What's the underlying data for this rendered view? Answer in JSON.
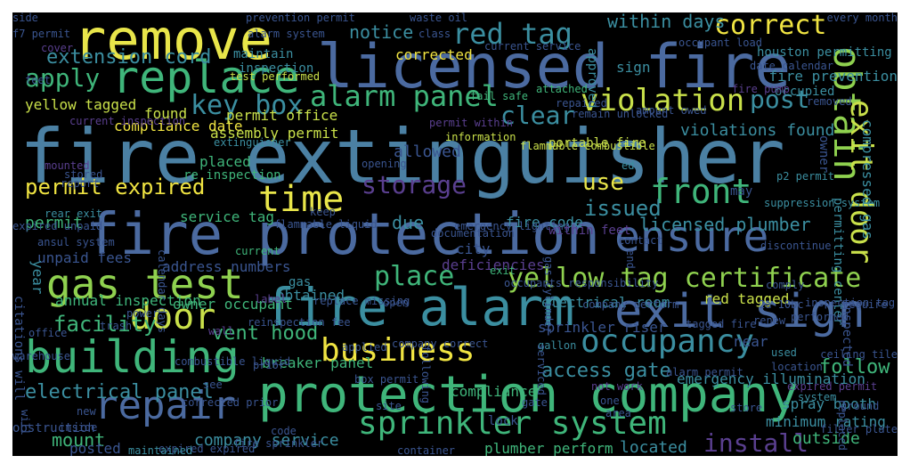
{
  "background": "#000000",
  "palette": {
    "teal": "#3b8ea0",
    "slate": "#4b6aa0",
    "navy": "#3a5590",
    "green": "#3fb57a",
    "lime": "#8fd14f",
    "yellow": "#f0e442",
    "purple": "#5a3f8f"
  },
  "words": [
    {
      "text": "fire extinguisher",
      "color": "#4b80a3"
    },
    {
      "text": "licensed fire",
      "color": "#4b6aa0"
    },
    {
      "text": "fire protection",
      "color": "#4b6aa0"
    },
    {
      "text": "protection company",
      "color": "#3fb57a"
    },
    {
      "text": "fire alarm",
      "color": "#3b8ea0"
    },
    {
      "text": "remove",
      "color": "#e8e54a"
    },
    {
      "text": "exit sign",
      "color": "#4b6aa0"
    },
    {
      "text": "ensure",
      "color": "#4b6aa0"
    },
    {
      "text": "building",
      "color": "#3fb57a"
    },
    {
      "text": "replace",
      "color": "#3fb57a"
    },
    {
      "text": "gas test",
      "color": "#8fd14f"
    },
    {
      "text": "repair",
      "color": "#4b6aa0"
    },
    {
      "text": "obtain",
      "color": "#8fd14f"
    },
    {
      "text": "sprinkler system",
      "color": "#3fb57a"
    },
    {
      "text": "exit door",
      "color": "#c9e04a"
    },
    {
      "text": "front",
      "color": "#3fb57a"
    },
    {
      "text": "door",
      "color": "#c9e04a"
    },
    {
      "text": "time",
      "color": "#e8e54a"
    },
    {
      "text": "business",
      "color": "#f0e442"
    },
    {
      "text": "occupancy",
      "color": "#3b8ea0"
    },
    {
      "text": "violation",
      "color": "#c9e04a"
    },
    {
      "text": "yellow tag certificate",
      "color": "#8fd14f"
    },
    {
      "text": "red tag",
      "color": "#3b8ea0"
    },
    {
      "text": "correct",
      "color": "#f0e442"
    },
    {
      "text": "alarm panel",
      "color": "#3fb57a"
    },
    {
      "text": "key box",
      "color": "#3b8ea0"
    },
    {
      "text": "post",
      "color": "#3b8ea0"
    },
    {
      "text": "clear",
      "color": "#3b8ea0"
    },
    {
      "text": "apply",
      "color": "#3fb57a"
    },
    {
      "text": "place",
      "color": "#3fb57a"
    },
    {
      "text": "permit expired",
      "color": "#f0e442"
    },
    {
      "text": "storage",
      "color": "#5a3f8f"
    },
    {
      "text": "install",
      "color": "#5a3f8f"
    },
    {
      "text": "use",
      "color": "#e8e54a"
    },
    {
      "text": "issued",
      "color": "#3b8ea0"
    },
    {
      "text": "facility",
      "color": "#3fb57a"
    },
    {
      "text": "electrical panel",
      "color": "#3b8ea0"
    },
    {
      "text": "follow",
      "color": "#3fb57a"
    },
    {
      "text": "access gate",
      "color": "#3b8ea0"
    },
    {
      "text": "licensed plumber",
      "color": "#3b8ea0"
    },
    {
      "text": "extension cord",
      "color": "#3b8ea0"
    },
    {
      "text": "notice",
      "color": "#3b8ea0"
    },
    {
      "text": "within days",
      "color": "#3b8ea0"
    },
    {
      "text": "vent hood",
      "color": "#3fb57a"
    },
    {
      "text": "company service",
      "color": "#3b8ea0"
    },
    {
      "text": "mount",
      "color": "#3fb57a"
    },
    {
      "text": "permit",
      "color": "#3fb57a"
    },
    {
      "text": "due",
      "color": "#3b8ea0"
    },
    {
      "text": "fire code",
      "color": "#3b8ea0"
    },
    {
      "text": "emergency illumination",
      "color": "#3b8ea0"
    },
    {
      "text": "violations found",
      "color": "#3b8ea0"
    },
    {
      "text": "fire prevention",
      "color": "#3b8ea0"
    },
    {
      "text": "houston permitting",
      "color": "#3b8ea0"
    },
    {
      "text": "occupied",
      "color": "#3b8ea0"
    },
    {
      "text": "permitting center",
      "color": "#3b8ea0"
    },
    {
      "text": "compressed gas",
      "color": "#3b8ea0"
    },
    {
      "text": "compliance date",
      "color": "#f0e442"
    },
    {
      "text": "yellow tagged",
      "color": "#c9e04a"
    },
    {
      "text": "found",
      "color": "#c9e04a"
    },
    {
      "text": "assembly permit",
      "color": "#c9e04a"
    },
    {
      "text": "permit office",
      "color": "#c9e04a"
    },
    {
      "text": "service tag",
      "color": "#3fb57a"
    },
    {
      "text": "breaker panel",
      "color": "#3fb57a"
    },
    {
      "text": "compliance",
      "color": "#3fb57a"
    },
    {
      "text": "plumber perform",
      "color": "#3fb57a"
    },
    {
      "text": "located",
      "color": "#3b8ea0"
    },
    {
      "text": "outside",
      "color": "#3fb57a"
    },
    {
      "text": "minimum rating",
      "color": "#3b8ea0"
    },
    {
      "text": "spray booth",
      "color": "#3b8ea0"
    },
    {
      "text": "annual inspection",
      "color": "#3fb57a"
    },
    {
      "text": "address numbers",
      "color": "#3a5590"
    },
    {
      "text": "deficiencies",
      "color": "#5a3f8f"
    },
    {
      "text": "owner occupant",
      "color": "#3fb57a"
    },
    {
      "text": "electrical room",
      "color": "#3b8ea0"
    },
    {
      "text": "red tagged",
      "color": "#c9e04a"
    },
    {
      "text": "maintain",
      "color": "#3b8ea0"
    },
    {
      "text": "inspection",
      "color": "#3b8ea0"
    },
    {
      "text": "corrected",
      "color": "#f0e442"
    },
    {
      "text": "approved",
      "color": "#3b8ea0"
    },
    {
      "text": "sign",
      "color": "#3b8ea0"
    },
    {
      "text": "current service",
      "color": "#3a5590"
    },
    {
      "text": "waste oil",
      "color": "#3a5590"
    },
    {
      "text": "class",
      "color": "#3a5590"
    },
    {
      "text": "prevention permit",
      "color": "#3a5590"
    },
    {
      "text": "alarm system",
      "color": "#3a5590"
    },
    {
      "text": "f7 permit",
      "color": "#3a5590"
    },
    {
      "text": "cover",
      "color": "#5a3f8f"
    },
    {
      "text": "test performed",
      "color": "#c9e04a"
    },
    {
      "text": "feet",
      "color": "#3a5590"
    },
    {
      "text": "occupant load",
      "color": "#3a5590"
    },
    {
      "text": "date calendar",
      "color": "#3a5590"
    },
    {
      "text": "every month",
      "color": "#3a5590"
    },
    {
      "text": "fail safe",
      "color": "#3fb57a"
    },
    {
      "text": "attached",
      "color": "#3fb57a"
    },
    {
      "text": "repaired",
      "color": "#3a5590"
    },
    {
      "text": "remain unlocked",
      "color": "#3a5590"
    },
    {
      "text": "amount owed",
      "color": "#3a5590"
    },
    {
      "text": "removed",
      "color": "#3a5590"
    },
    {
      "text": "fire pump",
      "color": "#5a3f8f"
    },
    {
      "text": "portable fire",
      "color": "#c9e04a"
    },
    {
      "text": "flammable combustible",
      "color": "#c9e04a"
    },
    {
      "text": "information",
      "color": "#c9e04a"
    },
    {
      "text": "permit within",
      "color": "#5a3f8f"
    },
    {
      "text": "extinguisher",
      "color": "#3b8ea0"
    },
    {
      "text": "placed",
      "color": "#3fb57a"
    },
    {
      "text": "re inspection",
      "color": "#3fb57a"
    },
    {
      "text": "mounted",
      "color": "#5a3f8f"
    },
    {
      "text": "stored",
      "color": "#3a5590"
    },
    {
      "text": "report",
      "color": "#3a5590"
    },
    {
      "text": "opening",
      "color": "#3a5590"
    },
    {
      "text": "allowed",
      "color": "#3a5590"
    },
    {
      "text": "ed",
      "color": "#3b8ea0"
    },
    {
      "text": "may",
      "color": "#3a5590"
    },
    {
      "text": "suppression system",
      "color": "#3b8ea0"
    },
    {
      "text": "p2 permit",
      "color": "#3b8ea0"
    },
    {
      "text": "owner",
      "color": "#3a5590"
    },
    {
      "text": "rear exit",
      "color": "#3b8ea0"
    },
    {
      "text": "expired unpaid",
      "color": "#3a5590"
    },
    {
      "text": "flammable liquid",
      "color": "#3a5590"
    },
    {
      "text": "keep",
      "color": "#3a5590"
    },
    {
      "text": "documentation",
      "color": "#3a5590"
    },
    {
      "text": "emergency lighting",
      "color": "#3a5590"
    },
    {
      "text": "within feet",
      "color": "#5a3f8f"
    },
    {
      "text": "contact",
      "color": "#3a5590"
    },
    {
      "text": "discontinue",
      "color": "#3a5590"
    },
    {
      "text": "ansul system",
      "color": "#3a5590"
    },
    {
      "text": "unpaid fees",
      "color": "#3a5590"
    },
    {
      "text": "current",
      "color": "#3fb57a"
    },
    {
      "text": "city",
      "color": "#3a5590"
    },
    {
      "text": "exit",
      "color": "#3fb57a"
    },
    {
      "text": "occupants responsibility",
      "color": "#3a5590"
    },
    {
      "text": "citations will",
      "color": "#3a5590"
    },
    {
      "text": "year",
      "color": "#3b8ea0"
    },
    {
      "text": "gas",
      "color": "#3b8ea0"
    },
    {
      "text": "obtained",
      "color": "#3b8ea0"
    },
    {
      "text": "label",
      "color": "#5a3f8f"
    },
    {
      "text": "open",
      "color": "#3a5590"
    },
    {
      "text": "company perform",
      "color": "#3a5590"
    },
    {
      "text": "inspection tag",
      "color": "#3a5590"
    },
    {
      "text": "performed",
      "color": "#3a5590"
    },
    {
      "text": "2a 10bc",
      "color": "#3a5590"
    },
    {
      "text": "renew",
      "color": "#3a5590"
    },
    {
      "text": "require",
      "color": "#3a5590"
    },
    {
      "text": "power",
      "color": "#3a5590"
    },
    {
      "text": "trash",
      "color": "#3a5590"
    },
    {
      "text": "office",
      "color": "#3a5590"
    },
    {
      "text": "reinspection fee",
      "color": "#3a5590"
    },
    {
      "text": "wall",
      "color": "#5a3f8f"
    },
    {
      "text": "warehouse",
      "color": "#3a5590"
    },
    {
      "text": "combustible liquid",
      "color": "#3a5590"
    },
    {
      "text": "prior",
      "color": "#3a5590"
    },
    {
      "text": "applied",
      "color": "#3a5590"
    },
    {
      "text": "company correct",
      "color": "#3a5590"
    },
    {
      "text": "sprinkler riser",
      "color": "#3a5590"
    },
    {
      "text": "gallon",
      "color": "#3b8ea0"
    },
    {
      "text": "tagged fire",
      "color": "#3a5590"
    },
    {
      "text": "near",
      "color": "#3a5590"
    },
    {
      "text": "used",
      "color": "#3b8ea0"
    },
    {
      "text": "location",
      "color": "#3a5590"
    },
    {
      "text": "alarm permit",
      "color": "#3a5590"
    },
    {
      "text": "expired permit",
      "color": "#5a3f8f"
    },
    {
      "text": "ceiling tile",
      "color": "#3a5590"
    },
    {
      "text": "see",
      "color": "#3a5590"
    },
    {
      "text": "box permit",
      "color": "#3a5590"
    },
    {
      "text": "new",
      "color": "#3a5590"
    },
    {
      "text": "corrected prior",
      "color": "#3a5590"
    },
    {
      "text": "obstruction",
      "color": "#3a5590"
    },
    {
      "text": "inside",
      "color": "#3a5590"
    },
    {
      "text": "code",
      "color": "#3a5590"
    },
    {
      "text": "fire sprinkler",
      "color": "#3a5590"
    },
    {
      "text": "expired expired",
      "color": "#3a5590"
    },
    {
      "text": "lock",
      "color": "#3a5590"
    },
    {
      "text": "site",
      "color": "#3a5590"
    },
    {
      "text": "gate",
      "color": "#3a5590"
    },
    {
      "text": "not work",
      "color": "#5a3f8f"
    },
    {
      "text": "one",
      "color": "#3a5590"
    },
    {
      "text": "area",
      "color": "#3a5590"
    },
    {
      "text": "store",
      "color": "#3a5590"
    },
    {
      "text": "filler plate",
      "color": "#3a5590"
    },
    {
      "text": "posted",
      "color": "#3a5590"
    },
    {
      "text": "maintained",
      "color": "#3b8ea0"
    },
    {
      "text": "container",
      "color": "#3a5590"
    },
    {
      "text": "replace missing",
      "color": "#3a5590"
    },
    {
      "text": "will",
      "color": "#3a5590"
    },
    {
      "text": "current inspection",
      "color": "#5a3f8f"
    },
    {
      "text": "end",
      "color": "#3a5590"
    },
    {
      "text": "gas cylinder",
      "color": "#3a5590"
    },
    {
      "text": "calendar days",
      "color": "#3a5590"
    },
    {
      "text": "following",
      "color": "#3a5590"
    },
    {
      "text": "serviced",
      "color": "#3a5590"
    },
    {
      "text": "ground",
      "color": "#3a5590"
    },
    {
      "text": "replaced",
      "color": "#3a5590"
    },
    {
      "text": "inspected",
      "color": "#3a5590"
    },
    {
      "text": "system",
      "color": "#3b8ea0"
    },
    {
      "text": "comply",
      "color": "#3a5590"
    },
    {
      "text": "side",
      "color": "#3a5590"
    }
  ]
}
